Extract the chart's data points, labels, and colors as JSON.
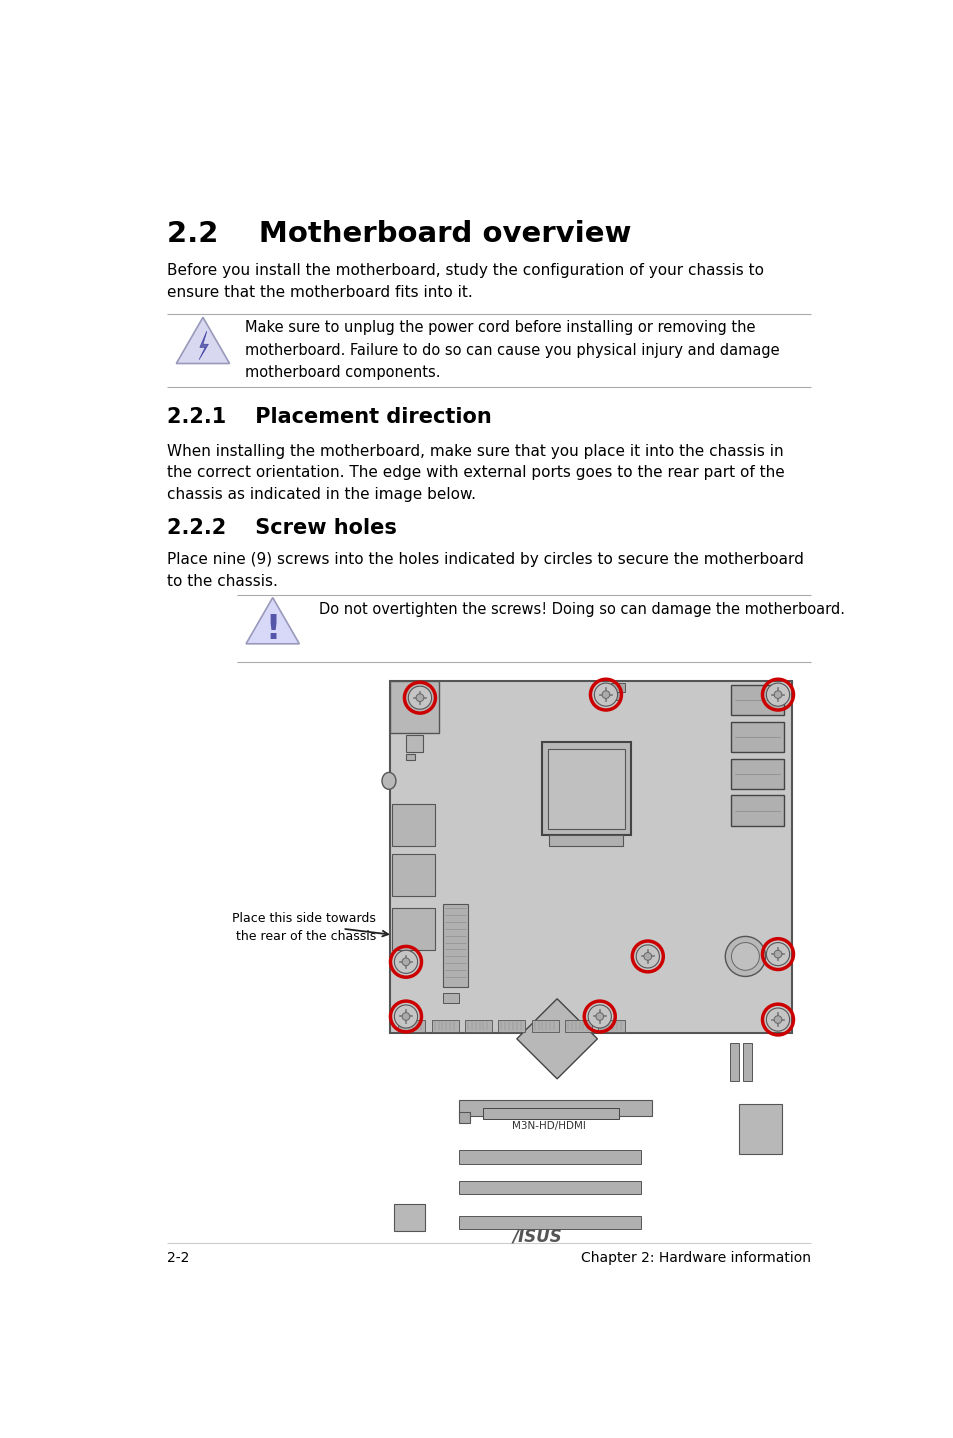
{
  "title": "2.2    Motherboard overview",
  "intro_text": "Before you install the motherboard, study the configuration of your chassis to\nensure that the motherboard fits into it.",
  "warning1_text": "Make sure to unplug the power cord before installing or removing the\nmotherboard. Failure to do so can cause you physical injury and damage\nmotherboard components.",
  "section221_title": "2.2.1    Placement direction",
  "section221_text": "When installing the motherboard, make sure that you place it into the chassis in\nthe correct orientation. The edge with external ports goes to the rear part of the\nchassis as indicated in the image below.",
  "section222_title": "2.2.2    Screw holes",
  "section222_text": "Place nine (9) screws into the holes indicated by circles to secure the motherboard\nto the chassis.",
  "warning2_text": "Do not overtighten the screws! Doing so can damage the motherboard.",
  "label_text": "Place this side towards\n the rear of the chassis",
  "footer_left": "2-2",
  "footer_right": "Chapter 2: Hardware information",
  "bg_color": "#ffffff",
  "text_color": "#000000",
  "line_color": "#aaaaaa",
  "mb_color": "#c8c8c8",
  "mb_dark_color": "#a8a8a8",
  "mb_border_color": "#555555",
  "screw_circle_color": "#cc0000",
  "warn1_tri_fill": "#d8d8f0",
  "warn1_tri_edge": "#9999bb",
  "warn2_tri_fill": "#d8d8f8",
  "warn2_tri_edge": "#9999bb",
  "bolt_color": "#6666aa",
  "excl_color": "#5555aa"
}
